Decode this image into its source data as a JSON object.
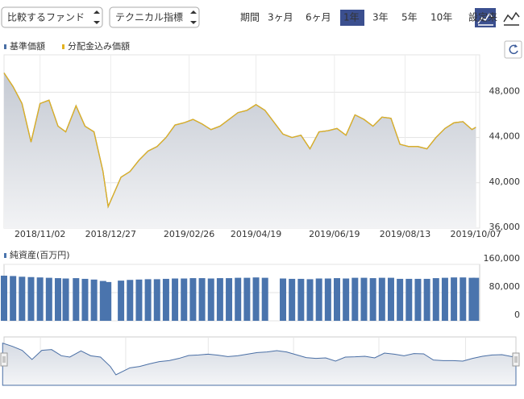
{
  "controls": {
    "compare": "比較するファンド",
    "technical": "テクニカル指標",
    "period_label": "期間",
    "periods": [
      "3ヶ月",
      "6ヶ月",
      "1年",
      "3年",
      "5年",
      "10年",
      "設定来"
    ],
    "selected_period": "1年"
  },
  "chart_data": [
    {
      "type": "area",
      "x": [
        "2018/10/05",
        "2018/10/12",
        "2018/10/19",
        "2018/10/26",
        "2018/11/02",
        "2018/11/09",
        "2018/11/16",
        "2018/11/22",
        "2018/11/30",
        "2018/12/07",
        "2018/12/14",
        "2018/12/21",
        "2018/12/25",
        "2019/01/04",
        "2019/01/11",
        "2019/01/18",
        "2019/01/25",
        "2019/02/01",
        "2019/02/08",
        "2019/02/15",
        "2019/02/22",
        "2019/03/01",
        "2019/03/08",
        "2019/03/15",
        "2019/03/22",
        "2019/03/29",
        "2019/04/05",
        "2019/04/12",
        "2019/04/19",
        "2019/04/26",
        "2019/05/10",
        "2019/05/17",
        "2019/05/24",
        "2019/05/31",
        "2019/06/07",
        "2019/06/14",
        "2019/06/21",
        "2019/06/28",
        "2019/07/05",
        "2019/07/12",
        "2019/07/19",
        "2019/07/26",
        "2019/08/02",
        "2019/08/09",
        "2019/08/16",
        "2019/08/23",
        "2019/08/30",
        "2019/09/06",
        "2019/09/13",
        "2019/09/20",
        "2019/09/27",
        "2019/10/04",
        "2019/10/07"
      ],
      "series": [
        {
          "name": "基準価額",
          "color": "#4a6fa5",
          "values": [
            49700,
            48500,
            47000,
            43600,
            47000,
            47300,
            45000,
            44500,
            46800,
            45000,
            44500,
            41000,
            37900,
            40500,
            41000,
            42000,
            42800,
            43200,
            44000,
            45100,
            45300,
            45600,
            45200,
            44700,
            45000,
            45600,
            46200,
            46400,
            46900,
            46400,
            44300,
            44000,
            44200,
            43000,
            44500,
            44600,
            44800,
            44200,
            46000,
            45600,
            45000,
            45800,
            45700,
            43400,
            43200,
            43200,
            43000,
            44000,
            44800,
            45300,
            45400,
            44700,
            44900
          ]
        },
        {
          "name": "分配金込み価額",
          "color": "#e3b21f",
          "values": [
            49700,
            48500,
            47000,
            43600,
            47000,
            47300,
            45000,
            44500,
            46800,
            45000,
            44500,
            41000,
            37900,
            40500,
            41000,
            42000,
            42800,
            43200,
            44000,
            45100,
            45300,
            45600,
            45200,
            44700,
            45000,
            45600,
            46200,
            46400,
            46900,
            46400,
            44300,
            44000,
            44200,
            43000,
            44500,
            44600,
            44800,
            44200,
            46000,
            45600,
            45000,
            45800,
            45700,
            43400,
            43200,
            43200,
            43000,
            44000,
            44800,
            45300,
            45400,
            44700,
            44900
          ]
        }
      ],
      "xlim": [
        "2018/10/05",
        "2019/10/10"
      ],
      "xticks": [
        "2018/11/02",
        "2018/12/27",
        "2019/02/26",
        "2019/04/19",
        "2019/06/19",
        "2019/08/13",
        "2019/10/07"
      ],
      "ylim": [
        36000,
        51300
      ],
      "yticks": [
        {
          "value": 36000,
          "label": "36,000"
        },
        {
          "value": 40000,
          "label": "40,000"
        },
        {
          "value": 44000,
          "label": "44,000"
        },
        {
          "value": 48000,
          "label": "48,000"
        }
      ],
      "grid": true
    },
    {
      "type": "bar",
      "series": [
        {
          "name": "純資産(百万円)",
          "color": "#4a74ad",
          "values": [
            128000,
            127000,
            125000,
            124000,
            123000,
            122000,
            121000,
            120000,
            121000,
            119000,
            117000,
            113000,
            110000,
            114000,
            116000,
            117000,
            118000,
            118000,
            119000,
            120000,
            120000,
            121000,
            121000,
            120000,
            121000,
            121000,
            122000,
            122000,
            123000,
            122000,
            120000,
            119000,
            119000,
            118000,
            120000,
            120000,
            121000,
            120000,
            122000,
            122000,
            121000,
            122000,
            122000,
            119000,
            119000,
            119000,
            119000,
            121000,
            122000,
            123000,
            123000,
            122000,
            122000
          ]
        }
      ],
      "ylim": [
        0,
        160000
      ],
      "yticks": [
        0,
        {
          "value": 80000,
          "label": "80,000"
        },
        {
          "value": 160000,
          "label": "160,000"
        }
      ]
    },
    {
      "type": "navigator",
      "xlim": [
        "2018/10/06",
        "2019/10/07"
      ],
      "xticks": [
        "2018/11",
        "2019/01",
        "2019/03",
        "2019/05",
        "2019/07",
        "2019/09"
      ],
      "ylim": [
        34000,
        52000
      ]
    }
  ]
}
